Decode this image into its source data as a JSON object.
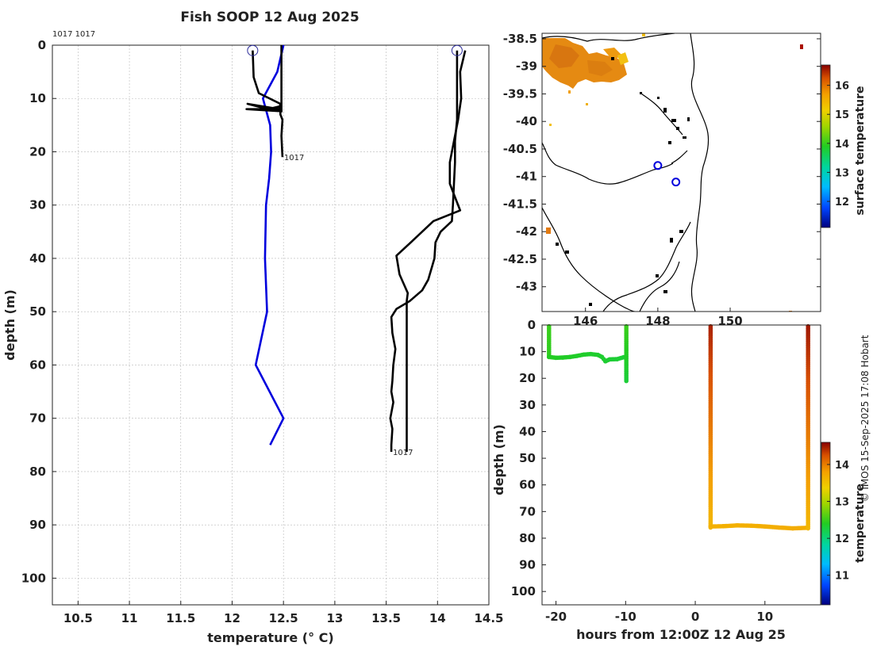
{
  "figure": {
    "title": "Fish SOOP 12 Aug 2025",
    "credit": "© IMOS 15-Sep-2025 17:08 Hobart"
  },
  "chart_data": [
    {
      "id": "profile",
      "type": "line",
      "xlabel": "temperature (° C)",
      "ylabel": "depth (m)",
      "xlim": [
        10.25,
        14.5
      ],
      "ylim": [
        105,
        0
      ],
      "xticks": [
        10.5,
        11,
        11.5,
        12,
        12.5,
        13,
        13.5,
        14,
        14.5
      ],
      "xtick_labels": [
        "10.5",
        "11",
        "11.5",
        "12",
        "12.5",
        "13",
        "13.5",
        "14",
        "14.5"
      ],
      "yticks": [
        0,
        10,
        20,
        30,
        40,
        50,
        60,
        70,
        80,
        90,
        100
      ],
      "ytick_labels": [
        "0",
        "10",
        "20",
        "30",
        "40",
        "50",
        "60",
        "70",
        "80",
        "90",
        "100"
      ],
      "grid": true,
      "corner_label": "1017 1017",
      "markers": [
        {
          "x": 12.2,
          "y": 1,
          "color": "#2b2b9a"
        },
        {
          "x": 14.19,
          "y": 1,
          "color": "#2b2b9a"
        }
      ],
      "series": [
        {
          "color": "#0000dd",
          "label": "",
          "points": [
            [
              12.5,
              0
            ],
            [
              12.44,
              5
            ],
            [
              12.3,
              10
            ],
            [
              12.37,
              15
            ],
            [
              12.38,
              20
            ],
            [
              12.36,
              25
            ],
            [
              12.33,
              30
            ],
            [
              12.32,
              40
            ],
            [
              12.34,
              50
            ],
            [
              12.23,
              60
            ],
            [
              12.5,
              70
            ],
            [
              12.37,
              75
            ]
          ]
        },
        {
          "color": "#000000",
          "label": "1017",
          "points": [
            [
              12.2,
              1
            ],
            [
              12.21,
              6
            ],
            [
              12.26,
              9
            ],
            [
              12.47,
              11
            ],
            [
              12.46,
              12
            ],
            [
              12.15,
              11
            ],
            [
              12.35,
              12
            ],
            [
              12.46,
              11.5
            ],
            [
              12.47,
              12.5
            ],
            [
              12.47,
              13
            ],
            [
              12.49,
              14
            ],
            [
              12.48,
              17
            ],
            [
              12.49,
              21
            ]
          ]
        },
        {
          "color": "#000000",
          "label": "",
          "points": [
            [
              12.48,
              0
            ],
            [
              12.48,
              5
            ],
            [
              12.48,
              10
            ],
            [
              12.48,
              12.3
            ],
            [
              12.37,
              12
            ],
            [
              12.14,
              12
            ],
            [
              12.49,
              12.4
            ]
          ]
        },
        {
          "color": "#000000",
          "label": "",
          "points": [
            [
              14.27,
              1
            ],
            [
              14.22,
              5
            ],
            [
              14.23,
              10
            ],
            [
              14.2,
              14
            ],
            [
              14.16,
              18
            ],
            [
              14.12,
              22
            ],
            [
              14.12,
              26
            ],
            [
              14.18,
              29
            ],
            [
              14.22,
              31
            ],
            [
              13.96,
              33
            ],
            [
              13.74,
              37
            ],
            [
              13.6,
              39.5
            ],
            [
              13.63,
              43
            ],
            [
              13.71,
              46.5
            ],
            [
              13.7,
              48
            ],
            [
              13.7,
              55
            ],
            [
              13.7,
              61
            ],
            [
              13.7,
              64
            ],
            [
              13.7,
              71
            ],
            [
              13.7,
              76.3
            ]
          ]
        },
        {
          "color": "#000000",
          "label": "1017",
          "points": [
            [
              14.19,
              1
            ],
            [
              14.19,
              5
            ],
            [
              14.19,
              10
            ],
            [
              14.19,
              14
            ],
            [
              14.17,
              18
            ],
            [
              14.17,
              22
            ],
            [
              14.16,
              26
            ],
            [
              14.15,
              30
            ],
            [
              14.14,
              33
            ],
            [
              14.03,
              35
            ],
            [
              13.98,
              37
            ],
            [
              13.97,
              40
            ],
            [
              13.91,
              44
            ],
            [
              13.85,
              46
            ],
            [
              13.73,
              48
            ],
            [
              13.6,
              49.5
            ],
            [
              13.55,
              51
            ],
            [
              13.56,
              54
            ],
            [
              13.59,
              57
            ],
            [
              13.57,
              60
            ],
            [
              13.56,
              63
            ],
            [
              13.55,
              65
            ],
            [
              13.57,
              67
            ],
            [
              13.54,
              70
            ],
            [
              13.56,
              72
            ],
            [
              13.55,
              75
            ],
            [
              13.55,
              76.3
            ]
          ]
        }
      ]
    },
    {
      "id": "map",
      "type": "heatmap",
      "xlim": [
        144.8,
        152.5
      ],
      "ylim": [
        -43.45,
        -38.4
      ],
      "xticks": [
        146,
        148,
        150
      ],
      "xtick_labels": [
        "146",
        "148",
        "150"
      ],
      "yticks": [
        -38.5,
        -39,
        -39.5,
        -40,
        -40.5,
        -41,
        -41.5,
        -42,
        -42.5,
        -43
      ],
      "ytick_labels": [
        "-38.5",
        "-39",
        "-39.5",
        "-40",
        "-40.5",
        "-41",
        "-41.5",
        "-42",
        "-42.5",
        "-43"
      ],
      "colorbar": {
        "label": "surface temperature",
        "range": [
          11.1,
          16.7
        ],
        "ticks": [
          12,
          13,
          14,
          15,
          16
        ],
        "tick_labels": [
          "12",
          "13",
          "14",
          "15",
          "16"
        ]
      },
      "markers": [
        {
          "lon": 148.0,
          "lat": -40.8,
          "color": "#0000dd"
        },
        {
          "lon": 148.5,
          "lat": -41.1,
          "color": "#0000dd"
        }
      ]
    },
    {
      "id": "timeseries",
      "type": "scatter",
      "xlabel": "hours from 12:00Z 12 Aug 25",
      "ylabel": "depth (m)",
      "xlim": [
        -22,
        18
      ],
      "ylim": [
        105,
        0
      ],
      "xticks": [
        -20,
        -10,
        0,
        10
      ],
      "xtick_labels": [
        "-20",
        "-10",
        "0",
        "10"
      ],
      "yticks": [
        0,
        10,
        20,
        30,
        40,
        50,
        60,
        70,
        80,
        90,
        100
      ],
      "ytick_labels": [
        "0",
        "10",
        "20",
        "30",
        "40",
        "50",
        "60",
        "70",
        "80",
        "90",
        "100"
      ],
      "colorbar": {
        "label": "temperature",
        "range": [
          10.2,
          14.6
        ],
        "ticks": [
          11,
          12,
          13,
          14
        ],
        "tick_labels": [
          "11",
          "12",
          "13",
          "14"
        ]
      },
      "casts": [
        {
          "kind": "vertical",
          "x": -21.0,
          "y_start": 0.5,
          "y_end": 12,
          "temps": [
            12.5,
            12.45
          ]
        },
        {
          "kind": "path",
          "temps": [
            12.4,
            12.3
          ],
          "points": [
            [
              -21,
              12
            ],
            [
              -20,
              12.3
            ],
            [
              -19,
              12.2
            ],
            [
              -18,
              12
            ],
            [
              -17,
              11.6
            ],
            [
              -16,
              11.1
            ],
            [
              -15,
              10.9
            ],
            [
              -14,
              11.2
            ],
            [
              -13.4,
              12
            ],
            [
              -12.9,
              13.6
            ],
            [
              -12.3,
              12.9
            ],
            [
              -11.2,
              12.8
            ],
            [
              -10.3,
              12.1
            ],
            [
              -10.0,
              12.2
            ]
          ]
        },
        {
          "kind": "vertical",
          "x": -9.9,
          "y_start": 0.5,
          "y_end": 21,
          "temps": [
            12.5,
            12.3
          ]
        },
        {
          "kind": "vertical",
          "x": 2.2,
          "y_start": 0.5,
          "y_end": 76,
          "temps": [
            14.45,
            13.6
          ]
        },
        {
          "kind": "path",
          "temps": [
            13.65,
            13.7
          ],
          "points": [
            [
              2.2,
              75.6
            ],
            [
              4,
              75.5
            ],
            [
              6,
              75.2
            ],
            [
              8,
              75.3
            ],
            [
              10,
              75.6
            ],
            [
              12,
              76
            ],
            [
              14,
              76.3
            ],
            [
              16,
              76.1
            ]
          ]
        },
        {
          "kind": "vertical",
          "x": 16.2,
          "y_start": 0.5,
          "y_end": 76.3,
          "temps": [
            14.5,
            13.6
          ]
        }
      ]
    }
  ]
}
